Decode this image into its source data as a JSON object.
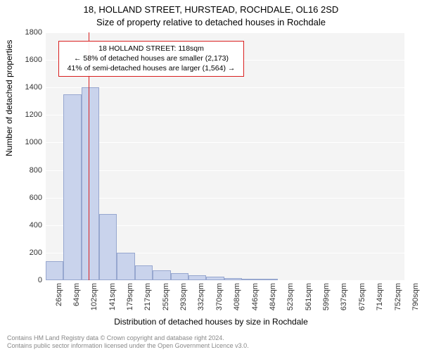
{
  "title_line1": "18, HOLLAND STREET, HURSTEAD, ROCHDALE, OL16 2SD",
  "title_line2": "Size of property relative to detached houses in Rochdale",
  "ylabel": "Number of detached properties",
  "xlabel": "Distribution of detached houses by size in Rochdale",
  "chart": {
    "type": "bar",
    "background_color": "#f4f4f4",
    "bar_fill": "#c9d3ec",
    "bar_border": "#97a7cf",
    "grid_color": "#ffffff",
    "ref_line_color": "#d92020",
    "ylim": [
      0,
      1800
    ],
    "ytick_step": 200,
    "yticks": [
      0,
      200,
      400,
      600,
      800,
      1000,
      1200,
      1400,
      1600,
      1800
    ],
    "xticks": [
      "26sqm",
      "64sqm",
      "102sqm",
      "141sqm",
      "179sqm",
      "217sqm",
      "255sqm",
      "293sqm",
      "332sqm",
      "370sqm",
      "408sqm",
      "446sqm",
      "484sqm",
      "523sqm",
      "561sqm",
      "599sqm",
      "637sqm",
      "675sqm",
      "714sqm",
      "752sqm",
      "790sqm"
    ],
    "x_min": 26,
    "x_max": 790,
    "bar_width_sqm": 38,
    "values": [
      140,
      1350,
      1400,
      480,
      200,
      110,
      70,
      50,
      35,
      25,
      15,
      10,
      8
    ],
    "ref_value_sqm": 118
  },
  "annotation": {
    "line1": "18 HOLLAND STREET: 118sqm",
    "line2": "← 58% of detached houses are smaller (2,173)",
    "line3": "41% of semi-detached houses are larger (1,564) →"
  },
  "copyright_line1": "Contains HM Land Registry data © Crown copyright and database right 2024.",
  "copyright_line2": "Contains public sector information licensed under the Open Government Licence v3.0."
}
